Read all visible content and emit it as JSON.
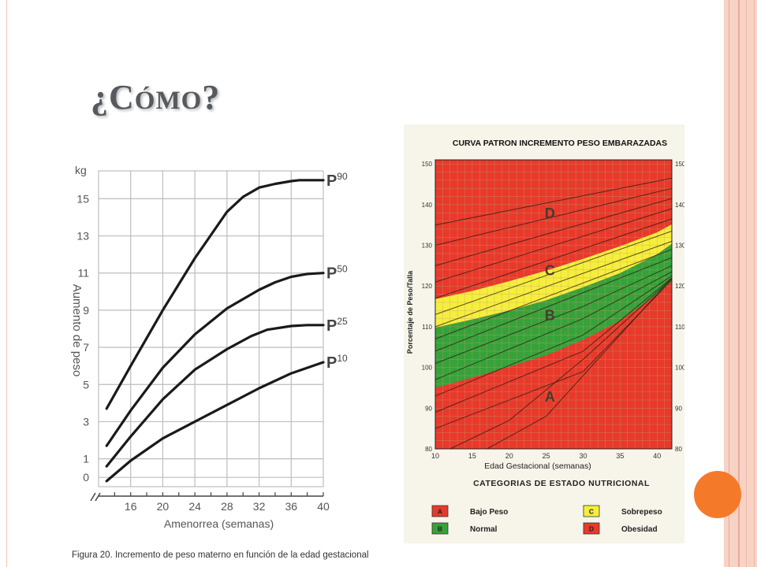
{
  "slide": {
    "title": "¿Cómo?",
    "accent_color": "#f47a2a",
    "decor_color": "#f7d3c6"
  },
  "chart_data": [
    {
      "type": "line",
      "y_unit_label": "kg",
      "ylabel": "Aumento de peso",
      "xlabel": "Amenorrea (semanas)",
      "caption": "Figura 20. Incremento de peso materno en función de la edad gestacional",
      "x_ticks": [
        16,
        20,
        24,
        28,
        32,
        36,
        40
      ],
      "y_ticks": [
        0,
        1,
        3,
        5,
        7,
        9,
        11,
        13,
        15
      ],
      "xlim": [
        12,
        40
      ],
      "ylim": [
        -0.5,
        16.5
      ],
      "grid": true,
      "series": [
        {
          "name": "P90",
          "label_main": "P",
          "label_sup": "90",
          "x": [
            13,
            16,
            20,
            24,
            28,
            30,
            32,
            34,
            36,
            37,
            38,
            40
          ],
          "y": [
            3.7,
            6.0,
            9.0,
            11.8,
            14.3,
            15.1,
            15.6,
            15.8,
            15.95,
            16.0,
            16.0,
            16.0
          ]
        },
        {
          "name": "P50",
          "label_main": "P",
          "label_sup": "50",
          "x": [
            13,
            16,
            20,
            24,
            28,
            32,
            34,
            36,
            38,
            40
          ],
          "y": [
            1.7,
            3.6,
            5.9,
            7.7,
            9.1,
            10.1,
            10.5,
            10.8,
            10.95,
            11.0
          ]
        },
        {
          "name": "P25",
          "label_main": "P",
          "label_sup": "25",
          "x": [
            13,
            16,
            20,
            24,
            28,
            31,
            33,
            36,
            38,
            40
          ],
          "y": [
            0.6,
            2.2,
            4.2,
            5.8,
            6.9,
            7.6,
            7.95,
            8.15,
            8.2,
            8.2
          ]
        },
        {
          "name": "P10",
          "label_main": "P",
          "label_sup": "10",
          "x": [
            13,
            16,
            20,
            24,
            28,
            32,
            36,
            40
          ],
          "y": [
            -0.2,
            0.9,
            2.1,
            3.0,
            3.9,
            4.8,
            5.6,
            6.2
          ]
        }
      ]
    },
    {
      "type": "area",
      "title": "CURVA PATRON INCREMENTO PESO EMBARAZADAS",
      "xlabel": "Edad Gestacional (semanas)",
      "ylabel": "Porcentaje de Peso/Talla",
      "x_ticks": [
        10,
        15,
        20,
        25,
        30,
        35,
        40
      ],
      "y_ticks": [
        80,
        90,
        100,
        110,
        120,
        130,
        140,
        150
      ],
      "xlim": [
        10,
        42
      ],
      "ylim": [
        80,
        151
      ],
      "grid": true,
      "band_boundaries": {
        "x": [
          10,
          15,
          20,
          25,
          30,
          35,
          40,
          42
        ],
        "lower_B": [
          95.0,
          97.5,
          100.2,
          103.0,
          106.8,
          111.5,
          118.0,
          121.2
        ],
        "lower_C": [
          109.8,
          111.8,
          114.0,
          116.5,
          119.7,
          123.2,
          127.8,
          130.4
        ],
        "lower_D": [
          116.8,
          118.8,
          121.2,
          123.8,
          126.7,
          129.8,
          133.2,
          135.2
        ]
      },
      "zone_letters": [
        {
          "letter": "D",
          "x": 25.5,
          "y": 138
        },
        {
          "letter": "C",
          "x": 25.5,
          "y": 124
        },
        {
          "letter": "B",
          "x": 25.5,
          "y": 113
        },
        {
          "letter": "A",
          "x": 25.5,
          "y": 93
        }
      ],
      "band_colors": {
        "A": "#e8392b",
        "B": "#37a23a",
        "C": "#f6ee3c",
        "D": "#e8392b",
        "grid": "#c0a070"
      },
      "legend_title": "CATEGORIAS DE ESTADO NUTRICIONAL",
      "legend": [
        {
          "code": "A",
          "label": "Bajo Peso",
          "color": "#e8392b"
        },
        {
          "code": "B",
          "label": "Normal",
          "color": "#37a23a"
        },
        {
          "code": "C",
          "label": "Sobrepeso",
          "color": "#f6ee3c"
        },
        {
          "code": "D",
          "label": "Obesidad",
          "color": "#e8392b"
        }
      ],
      "curves": [
        {
          "x": [
            10,
            42
          ],
          "y": [
            135,
            146.5
          ]
        },
        {
          "x": [
            10,
            42
          ],
          "y": [
            130,
            144
          ]
        },
        {
          "x": [
            10,
            42
          ],
          "y": [
            125,
            141.5
          ]
        },
        {
          "x": [
            10,
            42
          ],
          "y": [
            121,
            139
          ]
        },
        {
          "x": [
            10,
            42
          ],
          "y": [
            117,
            136.5
          ]
        },
        {
          "x": [
            10,
            42
          ],
          "y": [
            113,
            133.5
          ]
        },
        {
          "x": [
            10,
            42
          ],
          "y": [
            110,
            131
          ]
        },
        {
          "x": [
            10,
            42
          ],
          "y": [
            107,
            129
          ]
        },
        {
          "x": [
            10,
            42
          ],
          "y": [
            104,
            127
          ]
        },
        {
          "x": [
            10,
            30,
            42
          ],
          "y": [
            101,
            115,
            125
          ]
        },
        {
          "x": [
            10,
            30,
            42
          ],
          "y": [
            97,
            112,
            123.5
          ]
        },
        {
          "x": [
            10,
            30,
            42
          ],
          "y": [
            93,
            108,
            122.5
          ]
        },
        {
          "x": [
            10,
            30,
            42
          ],
          "y": [
            89,
            104,
            122
          ]
        },
        {
          "x": [
            10,
            30,
            42
          ],
          "y": [
            85,
            99,
            121.5
          ]
        },
        {
          "x": [
            12,
            20,
            30,
            42
          ],
          "y": [
            80,
            87,
            102,
            121.8
          ]
        },
        {
          "x": [
            17,
            25,
            33,
            42
          ],
          "y": [
            80,
            88,
            104,
            122
          ]
        }
      ]
    }
  ]
}
